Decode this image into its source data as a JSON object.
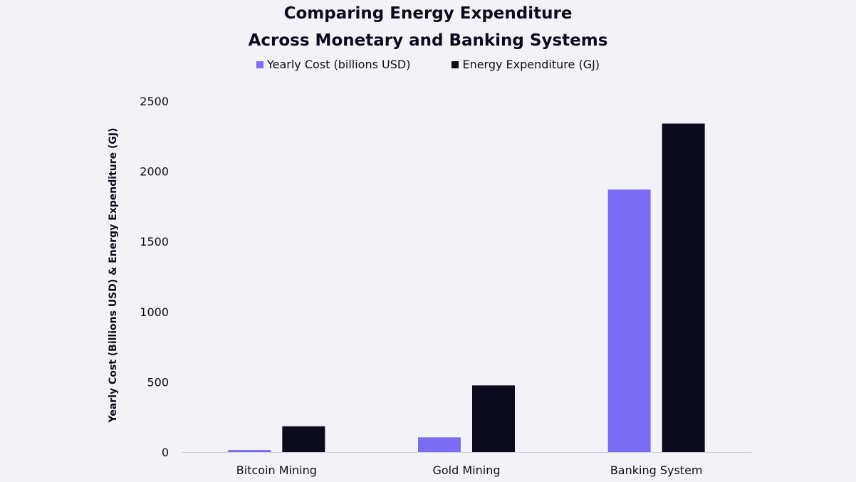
{
  "chart_data": {
    "type": "bar",
    "title_line1": "Comparing Energy Expenditure",
    "title_line2": "Across Monetary and Banking Systems",
    "xlabel": "",
    "ylabel": "Yearly Cost (Billions USD) & Energy Expenditure (GJ)",
    "categories": [
      "Bitcoin Mining",
      "Gold Mining",
      "Banking System"
    ],
    "series": [
      {
        "name": "Yearly Cost (billions USD)",
        "color": "#7b6cf6",
        "values": [
          15,
          105,
          1870
        ]
      },
      {
        "name": "Energy Expenditure (GJ)",
        "color": "#0b0b1d",
        "values": [
          184,
          475,
          2340
        ]
      }
    ],
    "ylim": [
      0,
      2500
    ],
    "yticks": [
      0,
      500,
      1000,
      1500,
      2000,
      2500
    ],
    "grid": false,
    "legend_position": "top-center",
    "axis_color": "#cfcfe0"
  }
}
